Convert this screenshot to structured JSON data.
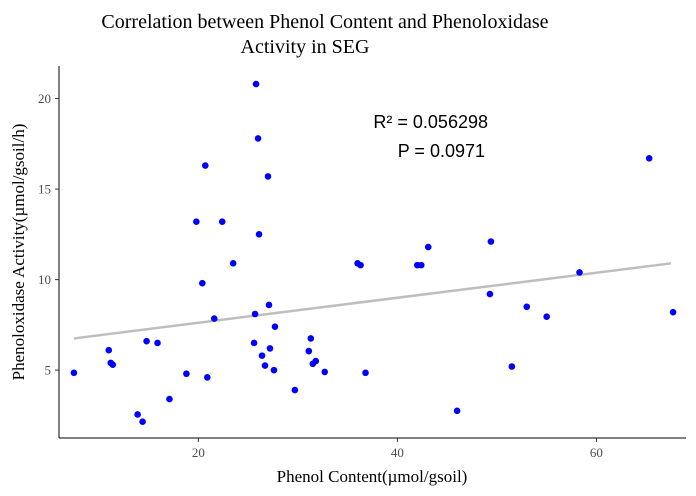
{
  "chart_data": {
    "type": "scatter",
    "title_lines": [
      "Correlation between Phenol Content and Phenoloxidase",
      "Activity in SEG"
    ],
    "xlabel": "Phenol Content(µmol/gsoil)",
    "ylabel": "Phenoloxidase Activity(µmol/gsoil/h)",
    "x_ticks": [
      20,
      40,
      60
    ],
    "y_ticks": [
      5,
      10,
      15,
      20
    ],
    "xlim": [
      6,
      69
    ],
    "ylim": [
      1.25,
      21.8
    ],
    "grid": false,
    "point_color": "#0000ff",
    "trend_color": "#bebebe",
    "annotations": [
      "R² = 0.056298",
      "P = 0.0971"
    ],
    "trendline": {
      "x": [
        7.5,
        67.5
      ],
      "y": [
        6.75,
        10.9
      ]
    },
    "points": [
      {
        "x": 7.5,
        "y": 4.85
      },
      {
        "x": 11.0,
        "y": 6.1
      },
      {
        "x": 11.2,
        "y": 5.4
      },
      {
        "x": 11.4,
        "y": 5.3
      },
      {
        "x": 13.9,
        "y": 2.55
      },
      {
        "x": 14.4,
        "y": 2.15
      },
      {
        "x": 14.8,
        "y": 6.6
      },
      {
        "x": 15.9,
        "y": 6.5
      },
      {
        "x": 17.1,
        "y": 3.4
      },
      {
        "x": 18.8,
        "y": 4.8
      },
      {
        "x": 19.8,
        "y": 13.2
      },
      {
        "x": 20.4,
        "y": 9.8
      },
      {
        "x": 20.7,
        "y": 16.3
      },
      {
        "x": 20.9,
        "y": 4.6
      },
      {
        "x": 21.6,
        "y": 7.85
      },
      {
        "x": 22.4,
        "y": 13.2
      },
      {
        "x": 23.5,
        "y": 10.9
      },
      {
        "x": 25.6,
        "y": 6.5
      },
      {
        "x": 25.7,
        "y": 8.1
      },
      {
        "x": 25.8,
        "y": 20.8
      },
      {
        "x": 26.0,
        "y": 17.8
      },
      {
        "x": 26.1,
        "y": 12.5
      },
      {
        "x": 26.4,
        "y": 5.8
      },
      {
        "x": 26.7,
        "y": 5.25
      },
      {
        "x": 27.0,
        "y": 15.7
      },
      {
        "x": 27.1,
        "y": 8.6
      },
      {
        "x": 27.2,
        "y": 6.2
      },
      {
        "x": 27.6,
        "y": 5.0
      },
      {
        "x": 27.7,
        "y": 7.4
      },
      {
        "x": 29.7,
        "y": 3.9
      },
      {
        "x": 31.1,
        "y": 6.05
      },
      {
        "x": 31.3,
        "y": 6.75
      },
      {
        "x": 31.5,
        "y": 5.35
      },
      {
        "x": 31.8,
        "y": 5.5
      },
      {
        "x": 32.7,
        "y": 4.9
      },
      {
        "x": 36.0,
        "y": 10.9
      },
      {
        "x": 36.3,
        "y": 10.8
      },
      {
        "x": 36.8,
        "y": 4.85
      },
      {
        "x": 42.0,
        "y": 10.8
      },
      {
        "x": 42.4,
        "y": 10.8
      },
      {
        "x": 43.1,
        "y": 11.8
      },
      {
        "x": 46.0,
        "y": 2.75
      },
      {
        "x": 49.3,
        "y": 9.2
      },
      {
        "x": 49.4,
        "y": 12.1
      },
      {
        "x": 51.5,
        "y": 5.2
      },
      {
        "x": 53.0,
        "y": 8.5
      },
      {
        "x": 55.0,
        "y": 7.95
      },
      {
        "x": 58.3,
        "y": 10.4
      },
      {
        "x": 65.3,
        "y": 16.7
      },
      {
        "x": 67.7,
        "y": 8.2
      }
    ]
  }
}
